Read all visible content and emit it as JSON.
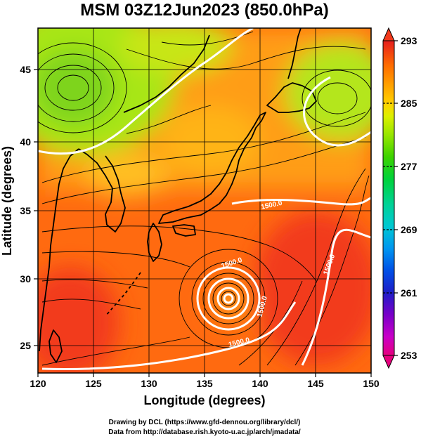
{
  "title": "MSM 03Z12Jun2023 (850.0hPa)",
  "xlabel": "Longitude (degrees)",
  "ylabel": "Latitude  (degrees)",
  "x_ticks": [
    "120",
    "125",
    "130",
    "135",
    "140",
    "145",
    "150"
  ],
  "y_ticks": [
    "25",
    "30",
    "35",
    "40",
    "45"
  ],
  "colorbar": {
    "ticks": [
      "293",
      "285",
      "277",
      "269",
      "261",
      "253"
    ],
    "min": 253,
    "max": 293,
    "colors": [
      "#e6007e",
      "#c800c8",
      "#7800c8",
      "#1e1ec8",
      "#0050e6",
      "#0096f0",
      "#00c8d2",
      "#00d296",
      "#00d23c",
      "#3cd200",
      "#96e600",
      "#dcf000",
      "#ffd200",
      "#ffa000",
      "#ff6e00",
      "#ff3200",
      "#e61e1e"
    ]
  },
  "map": {
    "lon_range": [
      120,
      150
    ],
    "lat_range": [
      22.5,
      47.8
    ],
    "grid_lon": [
      125,
      130,
      135,
      140,
      145
    ],
    "grid_lat": [
      25,
      30,
      35,
      40,
      45
    ]
  },
  "contour_labels": [
    "1500.0",
    "1500.0",
    "1500.0",
    "1500.0",
    "1500.0"
  ],
  "footer": {
    "line1": "Drawing by DCL (https://www.gfd-dennou.org/library/dcl/)",
    "line2": "Data from http://database.rish.kyoto-u.ac.jp/arch/jmadata/"
  },
  "colors": {
    "warm": "#ff6a10",
    "hot": "#f23a1c",
    "mild": "#ff9d14",
    "cool": "#a8e614",
    "cold": "#7ed41e"
  }
}
